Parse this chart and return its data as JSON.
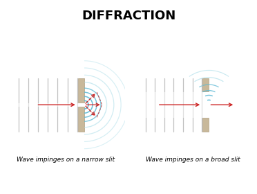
{
  "title": "DIFFRACTION",
  "title_fontsize": 13,
  "caption_left": "Wave impinges on a narrow slit",
  "caption_right": "Wave impinges on a broad slit",
  "caption_fontsize": 6.5,
  "bg_color": "#ffffff",
  "wall_color": "#c8b89a",
  "wall_edge": "#b0a080",
  "incoming_line_color": "#c0c0c0",
  "wave_color_inner": "#5bb8d4",
  "wave_color_outer": "#a8dce8",
  "arrow_color": "#cc2222",
  "incoming_arrow_color": "#cc2222"
}
